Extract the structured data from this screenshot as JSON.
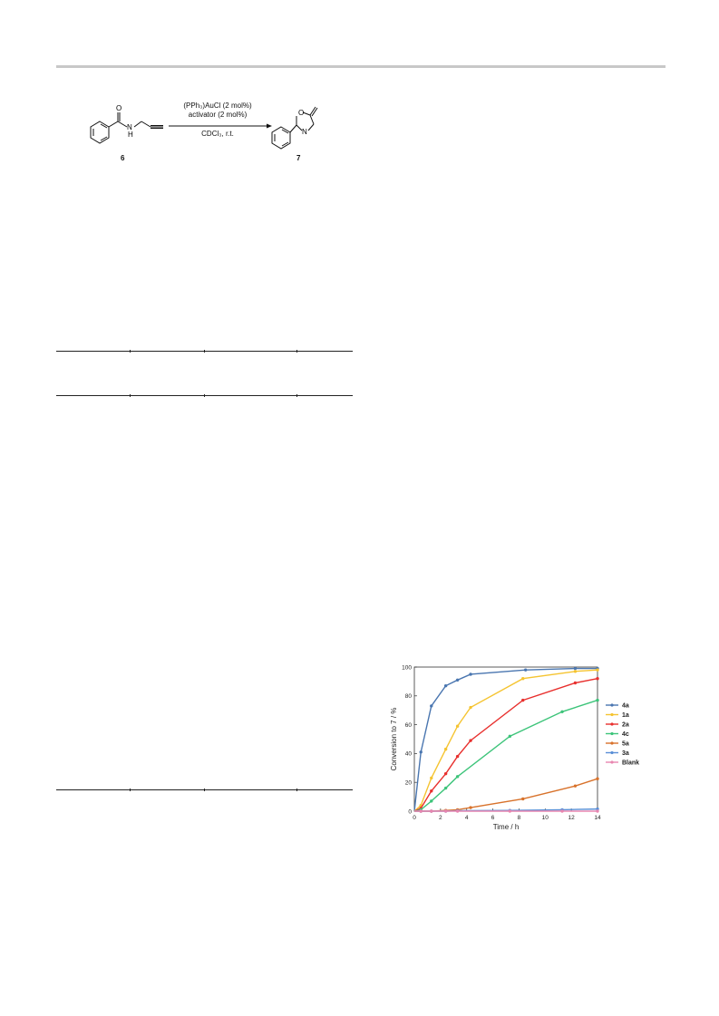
{
  "scheme": {
    "reagent_line1": "(PPh₃)AuCl (2 mol%)",
    "reagent_line2": "activator (2 mol%)",
    "conditions": "CDCl₃, r.t.",
    "substrate_label": "6",
    "product_label": "7",
    "substrate_atoms": {
      "o": "O",
      "nh": "N",
      "h": "H"
    },
    "product_atoms": {
      "o": "O",
      "n": "N"
    }
  },
  "chart_data": {
    "type": "line",
    "xlabel": "Time / h",
    "ylabel": "Conversion to 7 / %",
    "xlim": [
      0,
      14
    ],
    "ylim": [
      0,
      100
    ],
    "xticks": [
      0,
      2,
      4,
      6,
      8,
      10,
      12,
      14
    ],
    "yticks": [
      0,
      20,
      40,
      60,
      80,
      100
    ],
    "legend_position": "right",
    "series": [
      {
        "name": "4a",
        "color": "#4a76b0",
        "x": [
          0,
          0.5,
          1.3,
          2.4,
          3.3,
          4.3,
          8.5,
          12.3,
          14
        ],
        "y": [
          0,
          41,
          73,
          87,
          91,
          95,
          98,
          99,
          99
        ]
      },
      {
        "name": "1a",
        "color": "#f5c431",
        "x": [
          0,
          0.5,
          1.3,
          2.4,
          3.3,
          4.3,
          8.3,
          12.3,
          14
        ],
        "y": [
          0,
          4,
          23,
          43,
          59,
          72,
          92,
          97,
          98
        ]
      },
      {
        "name": "2a",
        "color": "#e8302e",
        "x": [
          0,
          0.5,
          1.3,
          2.4,
          3.3,
          4.3,
          8.3,
          12.3,
          14
        ],
        "y": [
          0,
          2,
          14,
          26,
          38,
          49,
          77,
          89,
          92
        ]
      },
      {
        "name": "4c",
        "color": "#3dc47a",
        "x": [
          0,
          0.5,
          1.3,
          2.4,
          3.3,
          7.3,
          11.3,
          14
        ],
        "y": [
          0,
          1,
          7,
          16,
          24,
          52,
          69,
          77
        ]
      },
      {
        "name": "5a",
        "color": "#d8722b",
        "x": [
          0,
          0.5,
          1.3,
          2.4,
          3.3,
          4.3,
          8.3,
          12.3,
          14
        ],
        "y": [
          0,
          0,
          0,
          0.5,
          1,
          2.5,
          8.5,
          17.5,
          22.5
        ]
      },
      {
        "name": "3a",
        "color": "#5a8fd6",
        "x": [
          0,
          0.5,
          1.3,
          2.4,
          3.3,
          7.3,
          11.3,
          14
        ],
        "y": [
          0,
          0,
          0,
          0,
          0.3,
          0.5,
          1,
          1.5
        ]
      },
      {
        "name": "Blank",
        "color": "#e886b0",
        "x": [
          0,
          0.5,
          1.3,
          2.4,
          3.3,
          7.3,
          11.3,
          14
        ],
        "y": [
          0,
          0,
          0,
          0,
          0,
          0,
          0,
          0
        ]
      }
    ]
  }
}
